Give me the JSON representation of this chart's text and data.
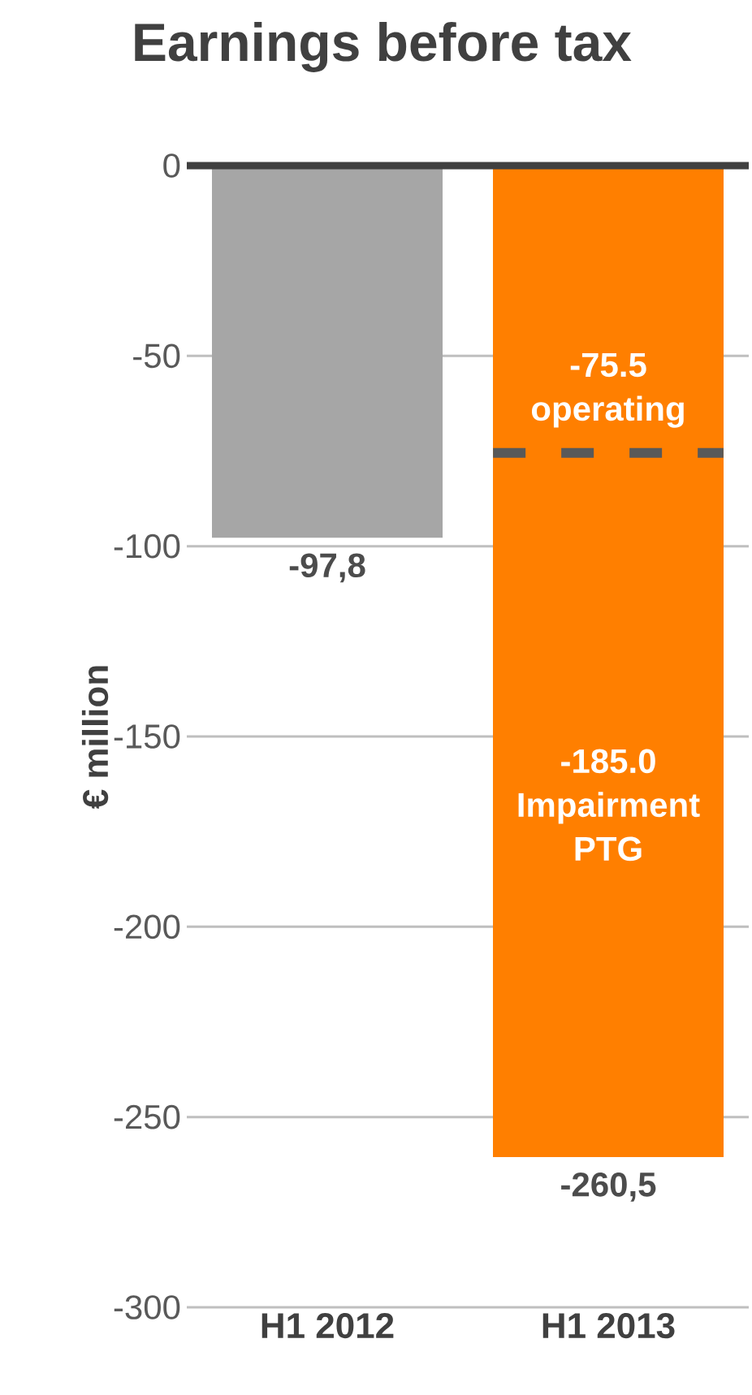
{
  "chart_data": {
    "type": "bar",
    "title": "Earnings before tax",
    "ylabel": "€ million",
    "categories": [
      "H1 2012",
      "H1 2013"
    ],
    "values": [
      -97.8,
      -260.5
    ],
    "colors": [
      "#a6a6a6",
      "#ff7f00"
    ],
    "value_labels": [
      "-97,8",
      "-260,5"
    ],
    "ylim": [
      -300,
      0
    ],
    "yticks": [
      -300,
      -250,
      -200,
      -150,
      -100,
      -50,
      0
    ],
    "grid": "y",
    "ref_lines": [
      {
        "axis": "y",
        "value": -75.5,
        "color": "#595959",
        "line_style": "dashed"
      }
    ],
    "annotations": [
      {
        "text": "-75.5 operating",
        "x": "H1 2013",
        "y": -75.5
      },
      "-185.0 Impairment PTG"
    ]
  }
}
